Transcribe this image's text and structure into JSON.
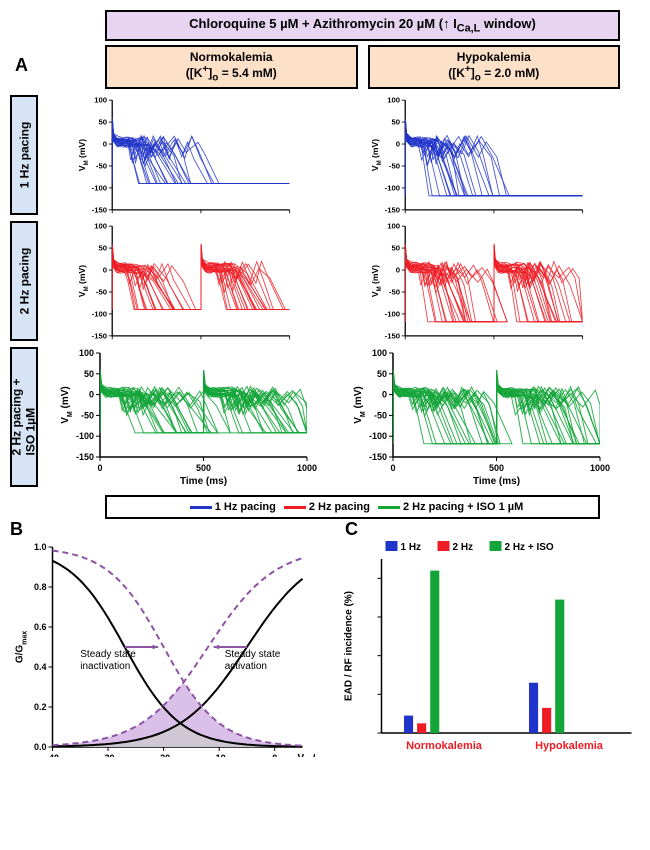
{
  "colors": {
    "blue": "#2134c9",
    "red": "#ee1c25",
    "green": "#13a538",
    "purple": "#8d54a6",
    "purple_fill": "#d6b8e6",
    "banner_fill": "#e6d4f0",
    "col_fill": "#fce0c8",
    "row_fill": "#d6e4f5"
  },
  "banner": {
    "text_html": "Chloroquine 5 µM + Azithromycin 20 µM (↑ I<sub>Ca,L</sub> window)"
  },
  "panelA_label": "A",
  "col_headers": [
    {
      "title": "Normokalemia",
      "sub_html": "([K<sup>+</sup>]<sub>o</sub> = 5.4 mM)"
    },
    {
      "title": "Hypokalemia",
      "sub_html": "([K<sup>+</sup>]<sub>o</sub> = 2.0 mM)"
    }
  ],
  "row_labels": [
    "1 Hz pacing",
    "2 Hz pacing",
    "2 Hz pacing +\nISO 1µM"
  ],
  "ap_plots": {
    "ylabel_html": "V<sub>M</sub> (mV)",
    "xlabel": "Time (ms)",
    "xlim": [
      0,
      1000
    ],
    "xticks": [
      0,
      500,
      1000
    ],
    "ylim": [
      -150,
      100
    ],
    "yticks": [
      -150,
      -100,
      -50,
      0,
      50,
      100
    ],
    "tick_fontsize": 9,
    "label_fontsize": 10,
    "line_width": 1,
    "show_xaxis_on_last_row_only": true,
    "rows": [
      {
        "color": "#2134c9",
        "n_traces": 24,
        "ead_prob": [
          0.5,
          0.7
        ],
        "baseline": [
          -90,
          -118
        ]
      },
      {
        "color": "#ee1c25",
        "n_traces": 24,
        "ead_prob": [
          0.3,
          0.45
        ],
        "baseline": [
          -90,
          -118
        ]
      },
      {
        "color": "#13a538",
        "n_traces": 24,
        "ead_prob": [
          0.85,
          0.7
        ],
        "baseline": [
          -92,
          -118
        ]
      }
    ]
  },
  "legend": {
    "items": [
      {
        "color": "#2134c9",
        "label": "1 Hz pacing"
      },
      {
        "color": "#ee1c25",
        "label": "2 Hz pacing"
      },
      {
        "color": "#13a538",
        "label": "2 Hz pacing + ISO 1 µM"
      }
    ]
  },
  "panelB": {
    "label": "B",
    "xlim": [
      -40,
      5
    ],
    "ylim": [
      0,
      1.0
    ],
    "xticks": [
      -40,
      -30,
      -20,
      -10,
      0
    ],
    "yticks": [
      0,
      0.2,
      0.4,
      0.6,
      0.8,
      1.0
    ],
    "xlabel_html": "V<sub>M</sub> (mV)",
    "ylabel_html": "G/G<sub>max</sub>",
    "tick_fontsize": 9,
    "label_fontsize": 10,
    "text_inact": "Steady state\ninactivation",
    "text_act": "Steady state\nactivation",
    "curves": {
      "control_act": {
        "v50": -5,
        "k": 6,
        "color": "#000",
        "dash": false
      },
      "control_inact": {
        "v50": -27,
        "k": -5,
        "color": "#000",
        "dash": false
      },
      "drug_act": {
        "v50": -12,
        "k": 6,
        "color": "#8d54a6",
        "dash": true
      },
      "drug_inact": {
        "v50": -20,
        "k": -5,
        "color": "#8d54a6",
        "dash": true
      }
    },
    "window_fill": "#d6b8e6",
    "arrow_color": "#8d54a6"
  },
  "panelC": {
    "label": "C",
    "ylabel": "EAD / RF incidence (%)",
    "ylim": [
      0,
      90
    ],
    "categories": [
      "Normokalemia",
      "Hypokalemia"
    ],
    "cat_label_color": "#ee1c25",
    "legend": [
      {
        "color": "#2134c9",
        "label": "1 Hz"
      },
      {
        "color": "#ee1c25",
        "label": "2 Hz"
      },
      {
        "color": "#13a538",
        "label": "2 Hz + ISO"
      }
    ],
    "data": {
      "Normokalemia": {
        "1 Hz": 9,
        "2 Hz": 5,
        "2 Hz + ISO": 84
      },
      "Hypokalemia": {
        "1 Hz": 26,
        "2 Hz": 13,
        "2 Hz + ISO": 69
      }
    },
    "bar_width": 0.26,
    "tick_fontsize": 9,
    "label_fontsize": 10
  }
}
